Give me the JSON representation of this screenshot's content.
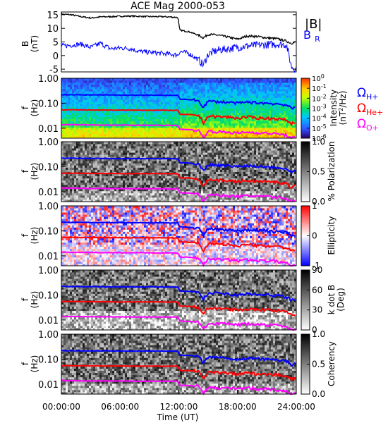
{
  "title": "ACE Mag 2000-053",
  "xaxis": {
    "label": "Time (UT)",
    "ticks": [
      "00:00:00",
      "06:00:00",
      "12:00:00",
      "18:00:00",
      "24:00:00"
    ],
    "range_hours": [
      0,
      24
    ]
  },
  "legend_top": {
    "B": "|B|",
    "BR_main": "B",
    "BR_sub": "R"
  },
  "legend_cyclotron": [
    {
      "main": "Ω",
      "sub": "H+",
      "color": "#0000ff"
    },
    {
      "main": "Ω",
      "sub": "He+",
      "color": "#ff0000"
    },
    {
      "main": "Ω",
      "sub": "O+",
      "color": "#ff00ff"
    }
  ],
  "freq_axis": {
    "ylabel_main": "f",
    "ylabel_unit": "(Hz)",
    "ticks": [
      "1.00",
      "0.10",
      "0.01"
    ]
  },
  "colorbars": [
    {
      "label": "Intensity",
      "unit_pre": "(nT",
      "unit_sup": "2",
      "unit_post": "/Hz)",
      "ticks": [
        "10",
        "10",
        "10",
        "10",
        "10",
        "10",
        "10"
      ],
      "exps": [
        "0",
        "-1",
        "-2",
        "-3",
        "-4",
        "-5",
        "-6"
      ]
    },
    {
      "label": "% Polarization",
      "ticks": [
        "1.0",
        "0.5",
        "0.0"
      ]
    },
    {
      "label": "Ellipticity",
      "ticks": [
        "1",
        "0",
        "-1"
      ]
    },
    {
      "label": "k dot B",
      "unit": "(Deg)",
      "ticks": [
        "90",
        "60",
        "30",
        "0"
      ]
    },
    {
      "label": "Coherency",
      "ticks": [
        "1.0",
        "0.5",
        "0.0"
      ]
    }
  ],
  "chart_data": {
    "type": "line",
    "title": "ACE Mag 2000-053",
    "xlabel": "Time (UT)",
    "mag_panel": {
      "ylabel": "B",
      "yunit": "(nT)",
      "ylim": [
        -6,
        16
      ],
      "yticks": [
        15,
        10,
        5,
        0,
        -5
      ],
      "series": [
        {
          "name": "|B|",
          "color": "#000000",
          "x": [
            0,
            1,
            2,
            3,
            4,
            5,
            6,
            7,
            8,
            9,
            10,
            11,
            11.9,
            12.1,
            13,
            14,
            14.5,
            15,
            16,
            17,
            18,
            19,
            20,
            21,
            22,
            23,
            23.5,
            24
          ],
          "y": [
            15.2,
            15.0,
            14.3,
            13.8,
            14.2,
            14.3,
            14.4,
            14.5,
            14.4,
            14.3,
            14.3,
            14.2,
            14.0,
            9.3,
            8.8,
            7.5,
            6.5,
            7.8,
            7.5,
            6.8,
            6.0,
            7.2,
            7.0,
            6.5,
            6.2,
            5.3,
            4.5,
            5.0
          ]
        },
        {
          "name": "B",
          "color": "#0000ff",
          "x": [
            0,
            1,
            2,
            3,
            4,
            5,
            6,
            7,
            8,
            9,
            10,
            11,
            11.9,
            12.1,
            13,
            14,
            14.5,
            15,
            16,
            17,
            18,
            19,
            20,
            21,
            22,
            23,
            23.5,
            24
          ],
          "y": [
            3.5,
            3.8,
            4.2,
            3.0,
            4.5,
            2.5,
            2.8,
            2.6,
            1.5,
            1.2,
            0.9,
            0.5,
            0.2,
            1.5,
            0.8,
            -1.5,
            -3.5,
            0.5,
            2.0,
            2.5,
            3.0,
            3.5,
            3.8,
            4.0,
            4.2,
            4.0,
            -4.0,
            -5.0
          ]
        }
      ]
    },
    "freq_panels": {
      "ylim_hz": [
        0.004,
        1.0
      ],
      "yscale": "log",
      "cyclotron_lines": [
        {
          "name": "H+",
          "color": "#0000ff",
          "x": [
            0,
            3,
            6,
            9,
            11.9,
            12.1,
            13,
            14,
            14.5,
            15,
            16,
            17,
            18,
            19,
            20,
            21,
            22,
            23,
            23.5,
            24
          ],
          "y": [
            0.22,
            0.215,
            0.212,
            0.21,
            0.208,
            0.145,
            0.14,
            0.13,
            0.065,
            0.12,
            0.115,
            0.11,
            0.1,
            0.11,
            0.105,
            0.1,
            0.095,
            0.085,
            0.06,
            0.07
          ]
        },
        {
          "name": "He+",
          "color": "#ff0000",
          "x": [
            0,
            3,
            6,
            9,
            11.9,
            12.1,
            13,
            14,
            14.5,
            15,
            16,
            17,
            18,
            19,
            20,
            21,
            22,
            23,
            23.5,
            24
          ],
          "y": [
            0.055,
            0.054,
            0.053,
            0.053,
            0.052,
            0.036,
            0.035,
            0.033,
            0.016,
            0.03,
            0.029,
            0.028,
            0.025,
            0.028,
            0.026,
            0.025,
            0.024,
            0.021,
            0.015,
            0.018
          ]
        },
        {
          "name": "O+",
          "color": "#ff00ff",
          "x": [
            0,
            3,
            6,
            9,
            11.9,
            12.1,
            13,
            14,
            14.5,
            15,
            16,
            17,
            18,
            19,
            20,
            21,
            22,
            23,
            23.5,
            24
          ],
          "y": [
            0.014,
            0.0135,
            0.0133,
            0.0132,
            0.013,
            0.009,
            0.0088,
            0.0082,
            0.004,
            0.0075,
            0.0072,
            0.007,
            0.0063,
            0.007,
            0.0066,
            0.0063,
            0.006,
            0.0053,
            0.0038,
            0.0045
          ]
        }
      ],
      "panels": [
        "intensity",
        "polarization",
        "ellipticity",
        "kdotb",
        "coherency"
      ]
    }
  }
}
